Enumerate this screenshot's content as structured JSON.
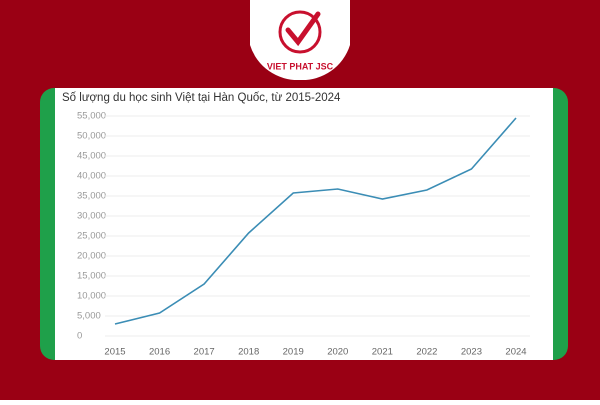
{
  "logo": {
    "text": "VIET PHAT JSC"
  },
  "chart_data": {
    "type": "line",
    "title": "Số lượng du học sinh Việt tại Hàn Quốc, từ 2015-2024",
    "categories": [
      "2015",
      "2016",
      "2017",
      "2018",
      "2019",
      "2020",
      "2021",
      "2022",
      "2023",
      "2024"
    ],
    "values": [
      3000,
      5750,
      13000,
      25750,
      35750,
      36750,
      34250,
      36500,
      41750,
      54500
    ],
    "color": "#3b8db5",
    "ylim": [
      0,
      55000
    ],
    "yticks": [
      0,
      {
        "value": 5000,
        "label": "5,000"
      },
      {
        "value": 10000,
        "label": "10,000"
      },
      {
        "value": 15000,
        "label": "15,000"
      },
      {
        "value": 20000,
        "label": "20,000"
      },
      {
        "value": 25000,
        "label": "25,000"
      },
      {
        "value": 30000,
        "label": "30,000"
      },
      {
        "value": 35000,
        "label": "35,000"
      },
      {
        "value": 40000,
        "label": "40,000"
      },
      {
        "value": 45000,
        "label": "45,000"
      },
      {
        "value": 50000,
        "label": "50,000"
      },
      {
        "value": 55000,
        "label": "55,000"
      }
    ],
    "grid": true
  }
}
